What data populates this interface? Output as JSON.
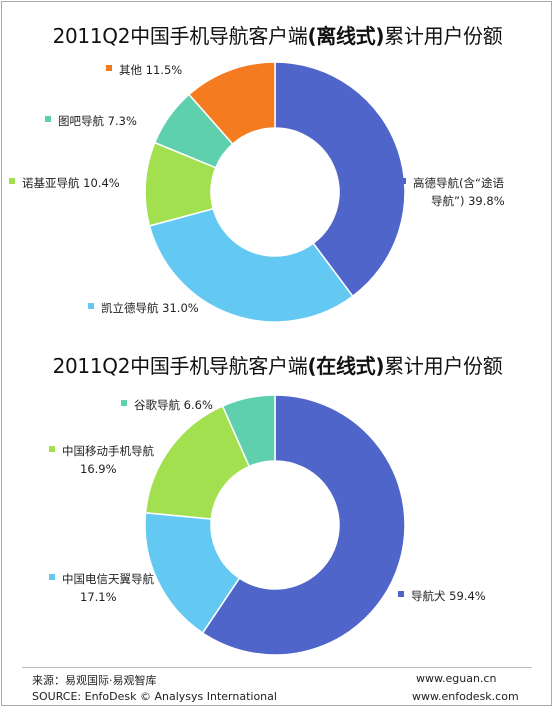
{
  "chart_data": [
    {
      "type": "pie",
      "variant": "donut",
      "title_parts": [
        "2011Q2中国手机导航客户端",
        "(离线式)",
        "累计用户份额"
      ],
      "unit": "%",
      "slices": [
        {
          "label_lines": [
            "高德导航(含“途语",
            "导航”)"
          ],
          "value": 39.8,
          "value_text": "39.8%",
          "color": "#4f65c9"
        },
        {
          "label_lines": [
            "凯立德导航"
          ],
          "value": 31.0,
          "value_text": "31.0%",
          "color": "#63c9f3"
        },
        {
          "label_lines": [
            "诺基亚导航"
          ],
          "value": 10.4,
          "value_text": "10.4%",
          "color": "#a3e04f"
        },
        {
          "label_lines": [
            "图吧导航"
          ],
          "value": 7.3,
          "value_text": "7.3%",
          "color": "#5fd0ae"
        },
        {
          "label_lines": [
            "其他"
          ],
          "value": 11.5,
          "value_text": "11.5%",
          "color": "#f47b20"
        }
      ]
    },
    {
      "type": "pie",
      "variant": "donut",
      "title_parts": [
        "2011Q2中国手机导航客户端",
        "(在线式)",
        "累计用户份额"
      ],
      "unit": "%",
      "slices": [
        {
          "label_lines": [
            "导航犬"
          ],
          "value": 59.4,
          "value_text": "59.4%",
          "color": "#4f65c9"
        },
        {
          "label_lines": [
            "中国电信天翼导航"
          ],
          "value": 17.1,
          "value_text": "17.1%",
          "color": "#63c9f3"
        },
        {
          "label_lines": [
            "中国移动手机导航"
          ],
          "value": 16.9,
          "value_text": "16.9%",
          "color": "#a3e04f"
        },
        {
          "label_lines": [
            "谷歌导航"
          ],
          "value": 6.6,
          "value_text": "6.6%",
          "color": "#5fd0ae"
        }
      ]
    }
  ],
  "footer": {
    "source_cn": "来源：易观国际·易观智库",
    "source_en": "SOURCE: EnfoDesk © Analysys International",
    "site1": "www.eguan.cn",
    "site2": "www.enfodesk.com"
  }
}
